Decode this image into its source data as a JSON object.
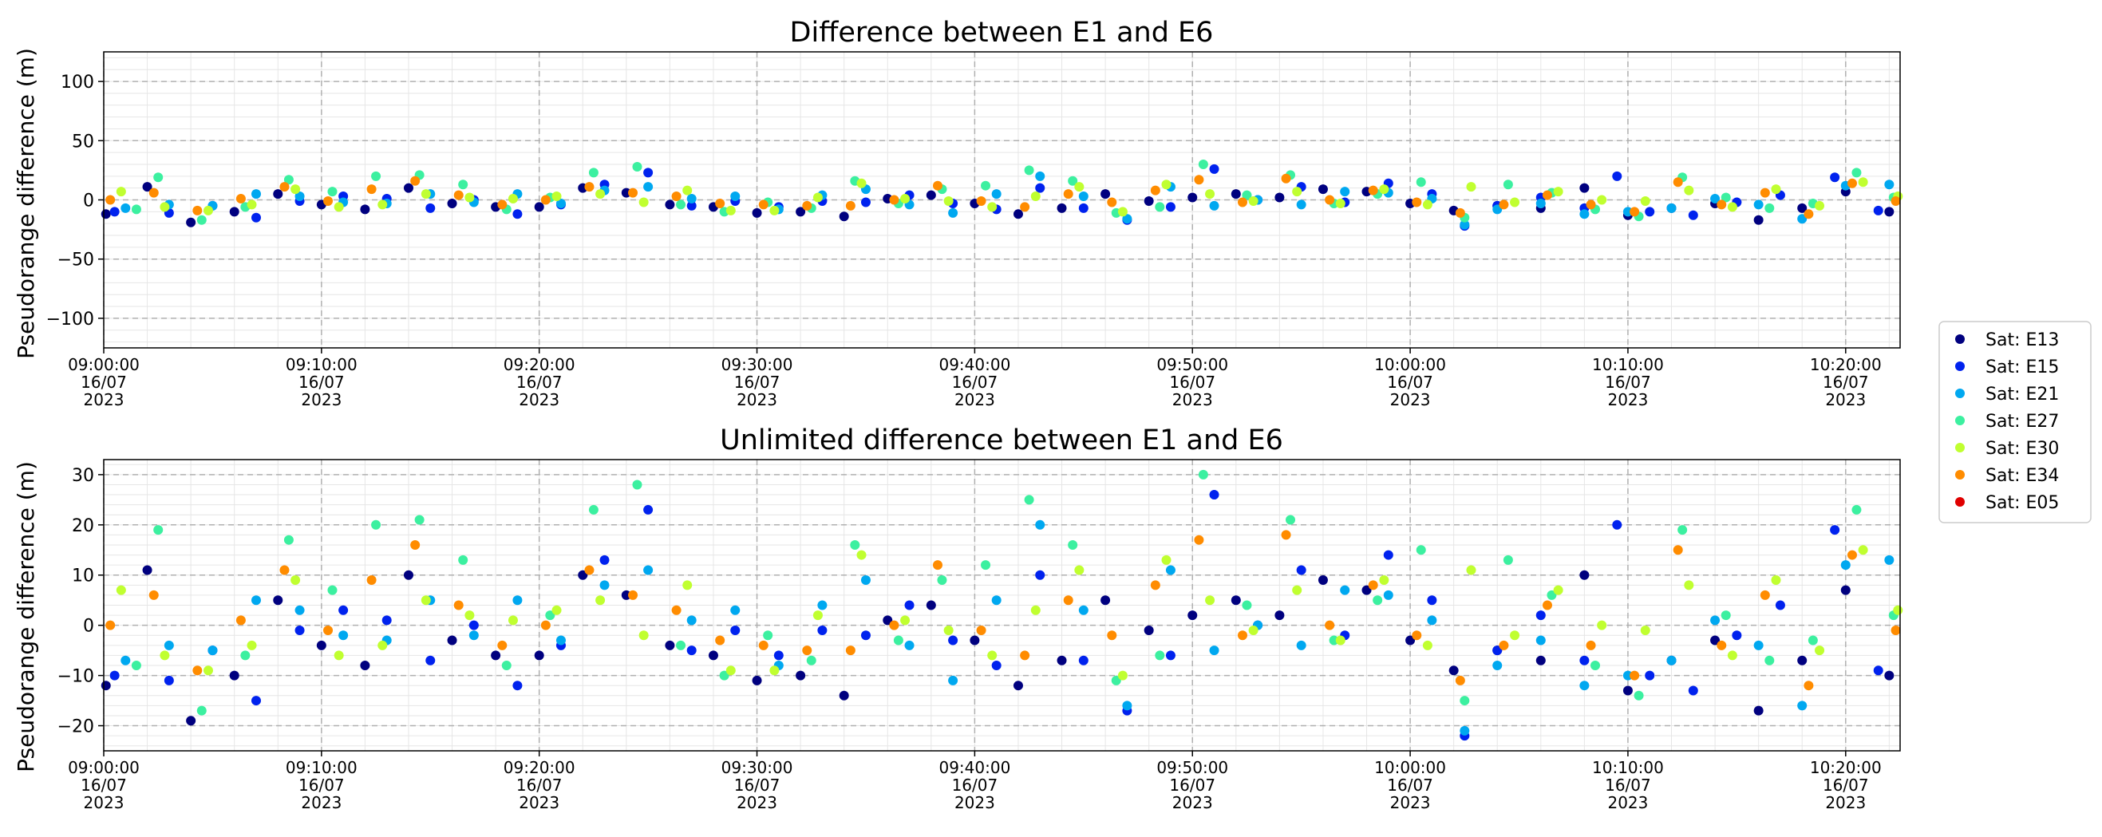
{
  "chart_data": [
    {
      "type": "scatter",
      "title": "Difference between E1 and E6",
      "ylabel": "Pseudorange difference (m)",
      "xlabel": "",
      "ylim": [
        -125,
        125
      ],
      "xlim_minutes": [
        0,
        82.5
      ],
      "grid": true,
      "yticks": [
        -100,
        -50,
        0,
        50,
        100
      ],
      "xtick_minutes": [
        0,
        10,
        20,
        30,
        40,
        50,
        60,
        70,
        80
      ],
      "xtick_labels": [
        [
          "09:00:00",
          "16/07",
          "2023"
        ],
        [
          "09:10:00",
          "16/07",
          "2023"
        ],
        [
          "09:20:00",
          "16/07",
          "2023"
        ],
        [
          "09:30:00",
          "16/07",
          "2023"
        ],
        [
          "09:40:00",
          "16/07",
          "2023"
        ],
        [
          "09:50:00",
          "16/07",
          "2023"
        ],
        [
          "10:00:00",
          "16/07",
          "2023"
        ],
        [
          "10:10:00",
          "16/07",
          "2023"
        ],
        [
          "10:20:00",
          "16/07",
          "2023"
        ]
      ]
    },
    {
      "type": "scatter",
      "title": "Unlimited difference between E1 and E6",
      "ylabel": "Pseudorange difference (m)",
      "xlabel": "",
      "ylim": [
        -25,
        33
      ],
      "xlim_minutes": [
        0,
        82.5
      ],
      "grid": true,
      "yticks": [
        -20,
        -10,
        0,
        10,
        20,
        30
      ],
      "xtick_minutes": [
        0,
        10,
        20,
        30,
        40,
        50,
        60,
        70,
        80
      ],
      "xtick_labels": [
        [
          "09:00:00",
          "16/07",
          "2023"
        ],
        [
          "09:10:00",
          "16/07",
          "2023"
        ],
        [
          "09:20:00",
          "16/07",
          "2023"
        ],
        [
          "09:30:00",
          "16/07",
          "2023"
        ],
        [
          "09:40:00",
          "16/07",
          "2023"
        ],
        [
          "09:50:00",
          "16/07",
          "2023"
        ],
        [
          "10:00:00",
          "16/07",
          "2023"
        ],
        [
          "10:10:00",
          "16/07",
          "2023"
        ],
        [
          "10:20:00",
          "16/07",
          "2023"
        ]
      ]
    }
  ],
  "legend": {
    "placement": "right-middle",
    "entries": [
      {
        "label": "Sat: E13",
        "color": "#00007f"
      },
      {
        "label": "Sat: E15",
        "color": "#0022ee"
      },
      {
        "label": "Sat: E21",
        "color": "#00a8f0"
      },
      {
        "label": "Sat: E27",
        "color": "#3cf0a0"
      },
      {
        "label": "Sat: E30",
        "color": "#c0ff30"
      },
      {
        "label": "Sat: E34",
        "color": "#ff8c00"
      },
      {
        "label": "Sat: E05",
        "color": "#e00000"
      }
    ]
  },
  "series_points": {
    "Sat: E13": [
      [
        0.1,
        -12
      ],
      [
        2,
        11
      ],
      [
        4,
        -19
      ],
      [
        6,
        -10
      ],
      [
        8,
        5
      ],
      [
        10,
        -4
      ],
      [
        12,
        -8
      ],
      [
        14,
        10
      ],
      [
        16,
        -3
      ],
      [
        18,
        -6
      ],
      [
        20,
        -6
      ],
      [
        22,
        10
      ],
      [
        24,
        6
      ],
      [
        26,
        -4
      ],
      [
        28,
        -6
      ],
      [
        30,
        -11
      ],
      [
        32,
        -10
      ],
      [
        34,
        -14
      ],
      [
        36,
        1
      ],
      [
        38,
        4
      ],
      [
        40,
        -3
      ],
      [
        42,
        -12
      ],
      [
        44,
        -7
      ],
      [
        46,
        5
      ],
      [
        48,
        -1
      ],
      [
        50,
        2
      ],
      [
        52,
        5
      ],
      [
        54,
        2
      ],
      [
        56,
        9
      ],
      [
        58,
        7
      ],
      [
        60,
        -3
      ],
      [
        62,
        -9
      ],
      [
        64,
        -5
      ],
      [
        66,
        -7
      ],
      [
        68,
        10
      ],
      [
        70,
        -13
      ],
      [
        72,
        -7
      ],
      [
        74,
        -3
      ],
      [
        76,
        -17
      ],
      [
        78,
        -7
      ],
      [
        80,
        7
      ],
      [
        82,
        -10
      ]
    ],
    "Sat: E15": [
      [
        0.5,
        -10
      ],
      [
        3,
        -11
      ],
      [
        5,
        -5
      ],
      [
        7,
        -15
      ],
      [
        9,
        -1
      ],
      [
        11,
        3
      ],
      [
        13,
        1
      ],
      [
        15,
        -7
      ],
      [
        17,
        0
      ],
      [
        19,
        -12
      ],
      [
        21,
        -4
      ],
      [
        23,
        13
      ],
      [
        25,
        23
      ],
      [
        27,
        -5
      ],
      [
        29,
        -1
      ],
      [
        31,
        -6
      ],
      [
        33,
        -1
      ],
      [
        35,
        -2
      ],
      [
        37,
        4
      ],
      [
        39,
        -3
      ],
      [
        41,
        -8
      ],
      [
        43,
        10
      ],
      [
        45,
        -7
      ],
      [
        47,
        -17
      ],
      [
        49,
        -6
      ],
      [
        51,
        26
      ],
      [
        53,
        0
      ],
      [
        55,
        11
      ],
      [
        57,
        -2
      ],
      [
        59,
        14
      ],
      [
        61,
        5
      ],
      [
        62.5,
        -22
      ],
      [
        64,
        -5
      ],
      [
        66,
        2
      ],
      [
        68,
        -7
      ],
      [
        69.5,
        20
      ],
      [
        71,
        -10
      ],
      [
        73,
        -13
      ],
      [
        75,
        -2
      ],
      [
        77,
        4
      ],
      [
        79.5,
        19
      ],
      [
        81.5,
        -9
      ]
    ],
    "Sat: E21": [
      [
        1,
        -7
      ],
      [
        3,
        -4
      ],
      [
        5,
        -5
      ],
      [
        7,
        5
      ],
      [
        9,
        3
      ],
      [
        11,
        -2
      ],
      [
        13,
        -3
      ],
      [
        15,
        5
      ],
      [
        17,
        -2
      ],
      [
        19,
        5
      ],
      [
        21,
        -3
      ],
      [
        23,
        8
      ],
      [
        25,
        11
      ],
      [
        27,
        1
      ],
      [
        29,
        3
      ],
      [
        31,
        -8
      ],
      [
        33,
        4
      ],
      [
        35,
        9
      ],
      [
        37,
        -4
      ],
      [
        39,
        -11
      ],
      [
        41,
        5
      ],
      [
        43,
        20
      ],
      [
        45,
        3
      ],
      [
        47,
        -16
      ],
      [
        49,
        11
      ],
      [
        51,
        -5
      ],
      [
        53,
        0
      ],
      [
        55,
        -4
      ],
      [
        57,
        7
      ],
      [
        59,
        6
      ],
      [
        61,
        1
      ],
      [
        62.5,
        -21
      ],
      [
        64,
        -8
      ],
      [
        66,
        -3
      ],
      [
        68,
        -12
      ],
      [
        70,
        -10
      ],
      [
        72,
        -7
      ],
      [
        74,
        1
      ],
      [
        76,
        -4
      ],
      [
        78,
        -16
      ],
      [
        80,
        12
      ],
      [
        82,
        13
      ]
    ],
    "Sat: E27": [
      [
        1.5,
        -8
      ],
      [
        2.5,
        19
      ],
      [
        4.5,
        -17
      ],
      [
        6.5,
        -6
      ],
      [
        8.5,
        17
      ],
      [
        10.5,
        7
      ],
      [
        12.5,
        20
      ],
      [
        14.5,
        21
      ],
      [
        16.5,
        13
      ],
      [
        18.5,
        -8
      ],
      [
        20.5,
        2
      ],
      [
        22.5,
        23
      ],
      [
        24.5,
        28
      ],
      [
        26.5,
        -4
      ],
      [
        28.5,
        -10
      ],
      [
        30.5,
        -2
      ],
      [
        32.5,
        -7
      ],
      [
        34.5,
        16
      ],
      [
        36.5,
        -3
      ],
      [
        38.5,
        9
      ],
      [
        40.5,
        12
      ],
      [
        42.5,
        25
      ],
      [
        44.5,
        16
      ],
      [
        46.5,
        -11
      ],
      [
        48.5,
        -6
      ],
      [
        50.5,
        30
      ],
      [
        52.5,
        4
      ],
      [
        54.5,
        21
      ],
      [
        56.5,
        -3
      ],
      [
        58.5,
        5
      ],
      [
        60.5,
        15
      ],
      [
        62.5,
        -15
      ],
      [
        64.5,
        13
      ],
      [
        66.5,
        6
      ],
      [
        68.5,
        -8
      ],
      [
        70.5,
        -14
      ],
      [
        72.5,
        19
      ],
      [
        74.5,
        2
      ],
      [
        76.5,
        -7
      ],
      [
        78.5,
        -3
      ],
      [
        80.5,
        23
      ],
      [
        82.2,
        2
      ]
    ],
    "Sat: E30": [
      [
        0.8,
        7
      ],
      [
        2.8,
        -6
      ],
      [
        4.8,
        -9
      ],
      [
        6.8,
        -4
      ],
      [
        8.8,
        9
      ],
      [
        10.8,
        -6
      ],
      [
        12.8,
        -4
      ],
      [
        14.8,
        5
      ],
      [
        16.8,
        2
      ],
      [
        18.8,
        1
      ],
      [
        20.8,
        3
      ],
      [
        22.8,
        5
      ],
      [
        24.8,
        -2
      ],
      [
        26.8,
        8
      ],
      [
        28.8,
        -9
      ],
      [
        30.8,
        -9
      ],
      [
        32.8,
        2
      ],
      [
        34.8,
        14
      ],
      [
        36.8,
        1
      ],
      [
        38.8,
        -1
      ],
      [
        40.8,
        -6
      ],
      [
        42.8,
        3
      ],
      [
        44.8,
        11
      ],
      [
        46.8,
        -10
      ],
      [
        48.8,
        13
      ],
      [
        50.8,
        5
      ],
      [
        52.8,
        -1
      ],
      [
        54.8,
        7
      ],
      [
        56.8,
        -3
      ],
      [
        58.8,
        9
      ],
      [
        60.8,
        -4
      ],
      [
        62.8,
        11
      ],
      [
        64.8,
        -2
      ],
      [
        66.8,
        7
      ],
      [
        68.8,
        0
      ],
      [
        70.8,
        -1
      ],
      [
        72.8,
        8
      ],
      [
        74.8,
        -6
      ],
      [
        76.8,
        9
      ],
      [
        78.8,
        -5
      ],
      [
        80.8,
        15
      ],
      [
        82.4,
        3
      ]
    ],
    "Sat: E34": [
      [
        0.3,
        0
      ],
      [
        2.3,
        6
      ],
      [
        4.3,
        -9
      ],
      [
        6.3,
        1
      ],
      [
        8.3,
        11
      ],
      [
        10.3,
        -1
      ],
      [
        12.3,
        9
      ],
      [
        14.3,
        16
      ],
      [
        16.3,
        4
      ],
      [
        18.3,
        -4
      ],
      [
        20.3,
        0
      ],
      [
        22.3,
        11
      ],
      [
        24.3,
        6
      ],
      [
        26.3,
        3
      ],
      [
        28.3,
        -3
      ],
      [
        30.3,
        -4
      ],
      [
        32.3,
        -5
      ],
      [
        34.3,
        -5
      ],
      [
        36.3,
        0
      ],
      [
        38.3,
        12
      ],
      [
        40.3,
        -1
      ],
      [
        42.3,
        -6
      ],
      [
        44.3,
        5
      ],
      [
        46.3,
        -2
      ],
      [
        48.3,
        8
      ],
      [
        50.3,
        17
      ],
      [
        52.3,
        -2
      ],
      [
        54.3,
        18
      ],
      [
        56.3,
        0
      ],
      [
        58.3,
        8
      ],
      [
        60.3,
        -2
      ],
      [
        62.3,
        -11
      ],
      [
        64.3,
        -4
      ],
      [
        66.3,
        4
      ],
      [
        68.3,
        -4
      ],
      [
        70.3,
        -10
      ],
      [
        72.3,
        15
      ],
      [
        74.3,
        -4
      ],
      [
        76.3,
        6
      ],
      [
        78.3,
        -12
      ],
      [
        80.3,
        14
      ],
      [
        82.3,
        -1
      ]
    ],
    "Sat: E05": []
  }
}
